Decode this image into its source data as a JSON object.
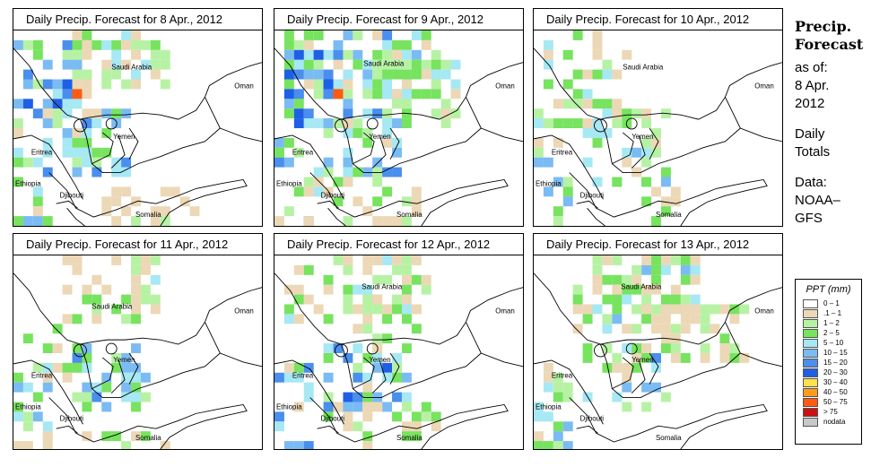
{
  "panels": [
    {
      "title": "Daily Precip. Forecast for  8 Apr., 2012"
    },
    {
      "title": "Daily Precip. Forecast for  9 Apr., 2012"
    },
    {
      "title": "Daily Precip. Forecast for  10 Apr., 2012"
    },
    {
      "title": "Daily Precip. Forecast for  11 Apr., 2012"
    },
    {
      "title": "Daily Precip. Forecast for  12 Apr., 2012"
    },
    {
      "title": "Daily Precip. Forecast for  13 Apr., 2012"
    }
  ],
  "map_labels": {
    "saudi": "Saudi Arabia",
    "oman": "Oman",
    "yemen": "Yemen",
    "eritrea": "Eritrea",
    "ethiopia": "Ethiopia",
    "djibouti": "Djibouti",
    "somalia": "Somalia"
  },
  "sidebar": {
    "title_line1": "Precip.",
    "title_line2": "Forecast",
    "asof_line1": "as of:",
    "asof_line2": "8 Apr.",
    "asof_line3": "2012",
    "daily_line1": "Daily",
    "daily_line2": "Totals",
    "data_line1": "Data:",
    "data_line2": "NOAA–",
    "data_line3": "GFS"
  },
  "legend": {
    "title": "PPT (mm)",
    "items": [
      {
        "label": "0 – 1",
        "color": "#ffffff"
      },
      {
        "label": ".1 – 1",
        "color": "#ecd8b6"
      },
      {
        "label": "1 – 2",
        "color": "#b7f2a4"
      },
      {
        "label": "2 – 5",
        "color": "#77e35f"
      },
      {
        "label": "5 – 10",
        "color": "#a6e8f3"
      },
      {
        "label": "10 – 15",
        "color": "#7bbbf3"
      },
      {
        "label": "15 – 20",
        "color": "#4a8eee"
      },
      {
        "label": "20 – 30",
        "color": "#1f5fe6"
      },
      {
        "label": "30 – 40",
        "color": "#ffe04d"
      },
      {
        "label": "40 – 50",
        "color": "#ff9c1a"
      },
      {
        "label": "50 – 75",
        "color": "#ff5a10"
      },
      {
        "label": "> 75",
        "color": "#cc1010"
      },
      {
        "label": "nodata",
        "color": "#c8c8c8"
      }
    ]
  }
}
